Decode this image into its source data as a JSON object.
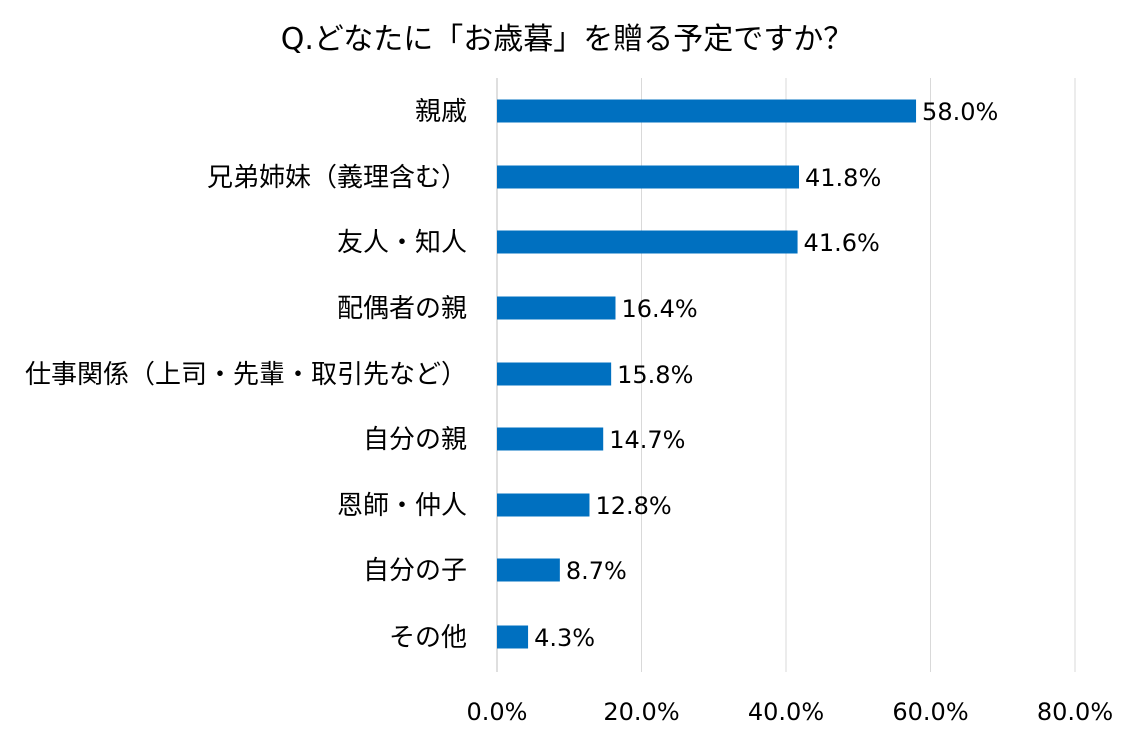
{
  "chart_data": {
    "type": "bar",
    "orientation": "horizontal",
    "title": "Q.どなたに「お歳暮」を贈る予定ですか？",
    "categories": [
      "親戚",
      "兄弟姉妹（義理含む）",
      "友人・知人",
      "配偶者の親",
      "仕事関係（上司・先輩・取引先など）",
      "自分の親",
      "恩師・仲人",
      "自分の子",
      "その他"
    ],
    "values": [
      58.0,
      41.8,
      41.6,
      16.4,
      15.8,
      14.7,
      12.8,
      8.7,
      4.3
    ],
    "value_labels": [
      "58.0%",
      "41.8%",
      "41.6%",
      "16.4%",
      "15.8%",
      "14.7%",
      "12.8%",
      "8.7%",
      "4.3%"
    ],
    "xlim": [
      0,
      80
    ],
    "xticks": [
      0,
      20,
      40,
      60,
      80
    ],
    "xtick_labels": [
      "0.0%",
      "20.0%",
      "40.0%",
      "60.0%",
      "80.0%"
    ],
    "xlabel": "",
    "ylabel": "",
    "grid": true,
    "legend": "none",
    "bar_color": "#0070c0"
  }
}
